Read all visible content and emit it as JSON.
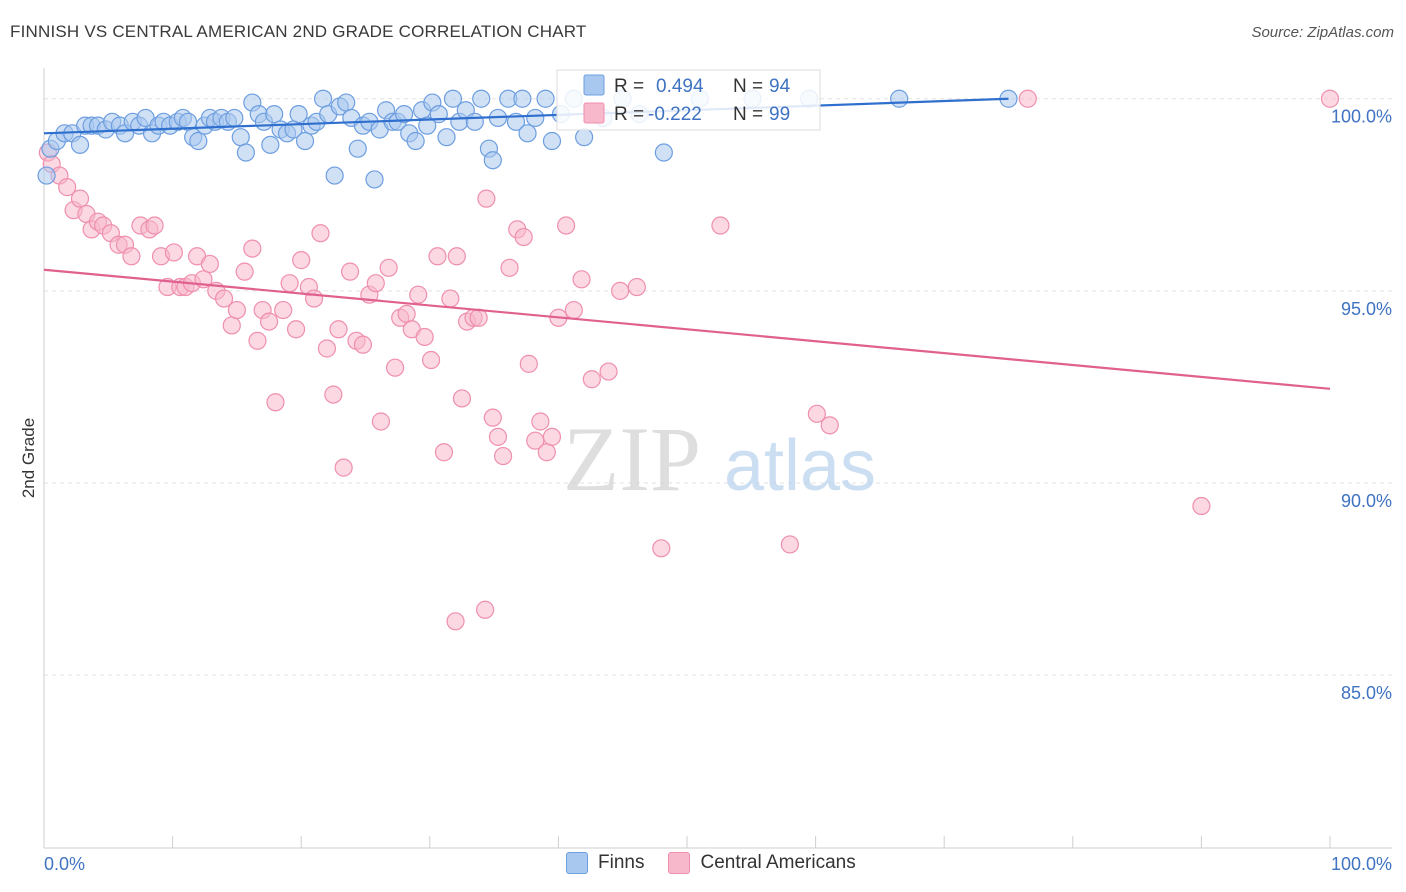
{
  "header": {
    "title": "FINNISH VS CENTRAL AMERICAN 2ND GRADE CORRELATION CHART",
    "source": "Source: ZipAtlas.com"
  },
  "watermark": {
    "zip": "ZIP",
    "atlas": "atlas"
  },
  "legend": {
    "finns": {
      "r_label": "R =",
      "r_value": "0.494",
      "n_label": "N =",
      "n_value": "94"
    },
    "central": {
      "r_label": "R =",
      "r_value": "-0.222",
      "n_label": "N =",
      "n_value": "99"
    }
  },
  "bottom_legend": {
    "finns": "Finns",
    "central": "Central Americans"
  },
  "chart_data": {
    "type": "scatter",
    "xlabel": "",
    "ylabel": "2nd Grade",
    "xlim": [
      0,
      100
    ],
    "ylim": [
      80.5,
      100.8
    ],
    "x_tick_labels": {
      "left": "0.0%",
      "right": "100.0%"
    },
    "y_ticks": [
      {
        "value": 100,
        "label": "100.0%"
      },
      {
        "value": 95,
        "label": "95.0%"
      },
      {
        "value": 90,
        "label": "90.0%"
      },
      {
        "value": 85,
        "label": "85.0%"
      }
    ],
    "colors": {
      "finns_fill": "#a9c8ef",
      "finns_stroke": "#6d9ee0",
      "finns_line": "#2f6fce",
      "central_fill": "#f7b8cb",
      "central_stroke": "#ef8fae",
      "central_line": "#e0608e"
    },
    "series": [
      {
        "name": "Finns",
        "trend": {
          "x": [
            0,
            75
          ],
          "y": [
            99.1,
            100.0
          ]
        },
        "points": [
          [
            0.2,
            98.0
          ],
          [
            0.5,
            98.7
          ],
          [
            1.0,
            98.9
          ],
          [
            1.6,
            99.1
          ],
          [
            2.2,
            99.1
          ],
          [
            2.8,
            98.8
          ],
          [
            3.2,
            99.3
          ],
          [
            3.7,
            99.3
          ],
          [
            4.2,
            99.3
          ],
          [
            4.8,
            99.2
          ],
          [
            5.3,
            99.4
          ],
          [
            5.9,
            99.3
          ],
          [
            6.3,
            99.1
          ],
          [
            6.9,
            99.4
          ],
          [
            7.4,
            99.3
          ],
          [
            7.9,
            99.5
          ],
          [
            8.4,
            99.1
          ],
          [
            8.9,
            99.3
          ],
          [
            9.3,
            99.4
          ],
          [
            9.8,
            99.3
          ],
          [
            10.4,
            99.4
          ],
          [
            10.8,
            99.5
          ],
          [
            11.2,
            99.4
          ],
          [
            11.6,
            99.0
          ],
          [
            12.0,
            98.9
          ],
          [
            12.5,
            99.3
          ],
          [
            12.9,
            99.5
          ],
          [
            13.3,
            99.4
          ],
          [
            13.8,
            99.5
          ],
          [
            14.3,
            99.4
          ],
          [
            14.8,
            99.5
          ],
          [
            15.3,
            99.0
          ],
          [
            15.7,
            98.6
          ],
          [
            16.2,
            99.9
          ],
          [
            16.7,
            99.6
          ],
          [
            17.1,
            99.4
          ],
          [
            17.6,
            98.8
          ],
          [
            17.9,
            99.6
          ],
          [
            18.4,
            99.2
          ],
          [
            18.9,
            99.1
          ],
          [
            19.4,
            99.2
          ],
          [
            19.8,
            99.6
          ],
          [
            20.3,
            98.9
          ],
          [
            20.8,
            99.3
          ],
          [
            21.2,
            99.4
          ],
          [
            21.7,
            100.0
          ],
          [
            22.1,
            99.6
          ],
          [
            22.6,
            98.0
          ],
          [
            23.0,
            99.8
          ],
          [
            23.5,
            99.9
          ],
          [
            23.9,
            99.5
          ],
          [
            24.4,
            98.7
          ],
          [
            24.8,
            99.3
          ],
          [
            25.3,
            99.4
          ],
          [
            25.7,
            97.9
          ],
          [
            26.1,
            99.2
          ],
          [
            26.6,
            99.7
          ],
          [
            27.1,
            99.4
          ],
          [
            27.5,
            99.4
          ],
          [
            28.0,
            99.6
          ],
          [
            28.4,
            99.1
          ],
          [
            28.9,
            98.9
          ],
          [
            29.4,
            99.7
          ],
          [
            29.8,
            99.3
          ],
          [
            30.2,
            99.9
          ],
          [
            30.7,
            99.6
          ],
          [
            31.3,
            99.0
          ],
          [
            31.8,
            100.0
          ],
          [
            32.3,
            99.4
          ],
          [
            32.8,
            99.7
          ],
          [
            33.5,
            99.4
          ],
          [
            34.0,
            100.0
          ],
          [
            34.6,
            98.7
          ],
          [
            34.9,
            98.4
          ],
          [
            35.3,
            99.5
          ],
          [
            36.1,
            100.0
          ],
          [
            36.7,
            99.4
          ],
          [
            37.2,
            100.0
          ],
          [
            37.6,
            99.1
          ],
          [
            38.2,
            99.5
          ],
          [
            39.0,
            100.0
          ],
          [
            39.5,
            98.9
          ],
          [
            40.2,
            99.6
          ],
          [
            41.2,
            100.0
          ],
          [
            42.0,
            99.0
          ],
          [
            43.5,
            99.5
          ],
          [
            45.0,
            100.0
          ],
          [
            46.3,
            99.6
          ],
          [
            48.2,
            98.6
          ],
          [
            51.0,
            100.0
          ],
          [
            55.1,
            100.0
          ],
          [
            59.5,
            100.0
          ],
          [
            66.5,
            100.0
          ],
          [
            75.0,
            100.0
          ]
        ]
      },
      {
        "name": "Central Americans",
        "trend": {
          "x": [
            0,
            100
          ],
          "y": [
            95.55,
            92.45
          ]
        },
        "points": [
          [
            0.3,
            98.6
          ],
          [
            0.6,
            98.3
          ],
          [
            1.2,
            98.0
          ],
          [
            1.8,
            97.7
          ],
          [
            2.3,
            97.1
          ],
          [
            2.8,
            97.4
          ],
          [
            3.3,
            97.0
          ],
          [
            3.7,
            96.6
          ],
          [
            4.2,
            96.8
          ],
          [
            4.6,
            96.7
          ],
          [
            5.2,
            96.5
          ],
          [
            5.8,
            96.2
          ],
          [
            6.3,
            96.2
          ],
          [
            6.8,
            95.9
          ],
          [
            7.5,
            96.7
          ],
          [
            8.2,
            96.6
          ],
          [
            8.6,
            96.7
          ],
          [
            9.1,
            95.9
          ],
          [
            9.6,
            95.1
          ],
          [
            10.1,
            96.0
          ],
          [
            10.6,
            95.1
          ],
          [
            11.0,
            95.1
          ],
          [
            11.5,
            95.2
          ],
          [
            11.9,
            95.9
          ],
          [
            12.4,
            95.3
          ],
          [
            12.9,
            95.7
          ],
          [
            13.4,
            95.0
          ],
          [
            14.0,
            94.8
          ],
          [
            14.6,
            94.1
          ],
          [
            15.0,
            94.5
          ],
          [
            15.6,
            95.5
          ],
          [
            16.2,
            96.1
          ],
          [
            16.6,
            93.7
          ],
          [
            17.0,
            94.5
          ],
          [
            17.5,
            94.2
          ],
          [
            18.0,
            92.1
          ],
          [
            18.6,
            94.5
          ],
          [
            19.1,
            95.2
          ],
          [
            19.6,
            94.0
          ],
          [
            20.0,
            95.8
          ],
          [
            20.6,
            95.1
          ],
          [
            21.0,
            94.8
          ],
          [
            21.5,
            96.5
          ],
          [
            22.0,
            93.5
          ],
          [
            22.5,
            92.3
          ],
          [
            22.9,
            94.0
          ],
          [
            23.3,
            90.4
          ],
          [
            23.8,
            95.5
          ],
          [
            24.3,
            93.7
          ],
          [
            24.8,
            93.6
          ],
          [
            25.3,
            94.9
          ],
          [
            25.8,
            95.2
          ],
          [
            26.2,
            91.6
          ],
          [
            26.8,
            95.6
          ],
          [
            27.3,
            93.0
          ],
          [
            27.7,
            94.3
          ],
          [
            28.2,
            94.4
          ],
          [
            28.6,
            94.0
          ],
          [
            29.1,
            94.9
          ],
          [
            29.6,
            93.8
          ],
          [
            30.1,
            93.2
          ],
          [
            30.6,
            95.9
          ],
          [
            31.1,
            90.8
          ],
          [
            31.6,
            94.8
          ],
          [
            32.1,
            95.9
          ],
          [
            32.5,
            92.2
          ],
          [
            32.9,
            94.2
          ],
          [
            33.4,
            94.3
          ],
          [
            33.8,
            94.3
          ],
          [
            34.4,
            97.4
          ],
          [
            34.9,
            91.7
          ],
          [
            35.3,
            91.2
          ],
          [
            35.7,
            90.7
          ],
          [
            36.2,
            95.6
          ],
          [
            36.8,
            96.6
          ],
          [
            37.3,
            96.4
          ],
          [
            37.7,
            93.1
          ],
          [
            38.2,
            91.1
          ],
          [
            38.6,
            91.6
          ],
          [
            39.1,
            90.8
          ],
          [
            39.5,
            91.2
          ],
          [
            40.0,
            94.3
          ],
          [
            40.6,
            96.7
          ],
          [
            41.2,
            94.5
          ],
          [
            41.8,
            95.3
          ],
          [
            42.6,
            92.7
          ],
          [
            43.9,
            92.9
          ],
          [
            44.8,
            95.0
          ],
          [
            46.1,
            95.1
          ],
          [
            48.0,
            88.3
          ],
          [
            52.6,
            96.7
          ],
          [
            32.0,
            86.4
          ],
          [
            34.3,
            86.7
          ],
          [
            58.0,
            88.4
          ],
          [
            60.1,
            91.8
          ],
          [
            61.1,
            91.5
          ],
          [
            76.5,
            100.0
          ],
          [
            90.0,
            89.4
          ],
          [
            100.0,
            100.0
          ]
        ]
      }
    ]
  }
}
